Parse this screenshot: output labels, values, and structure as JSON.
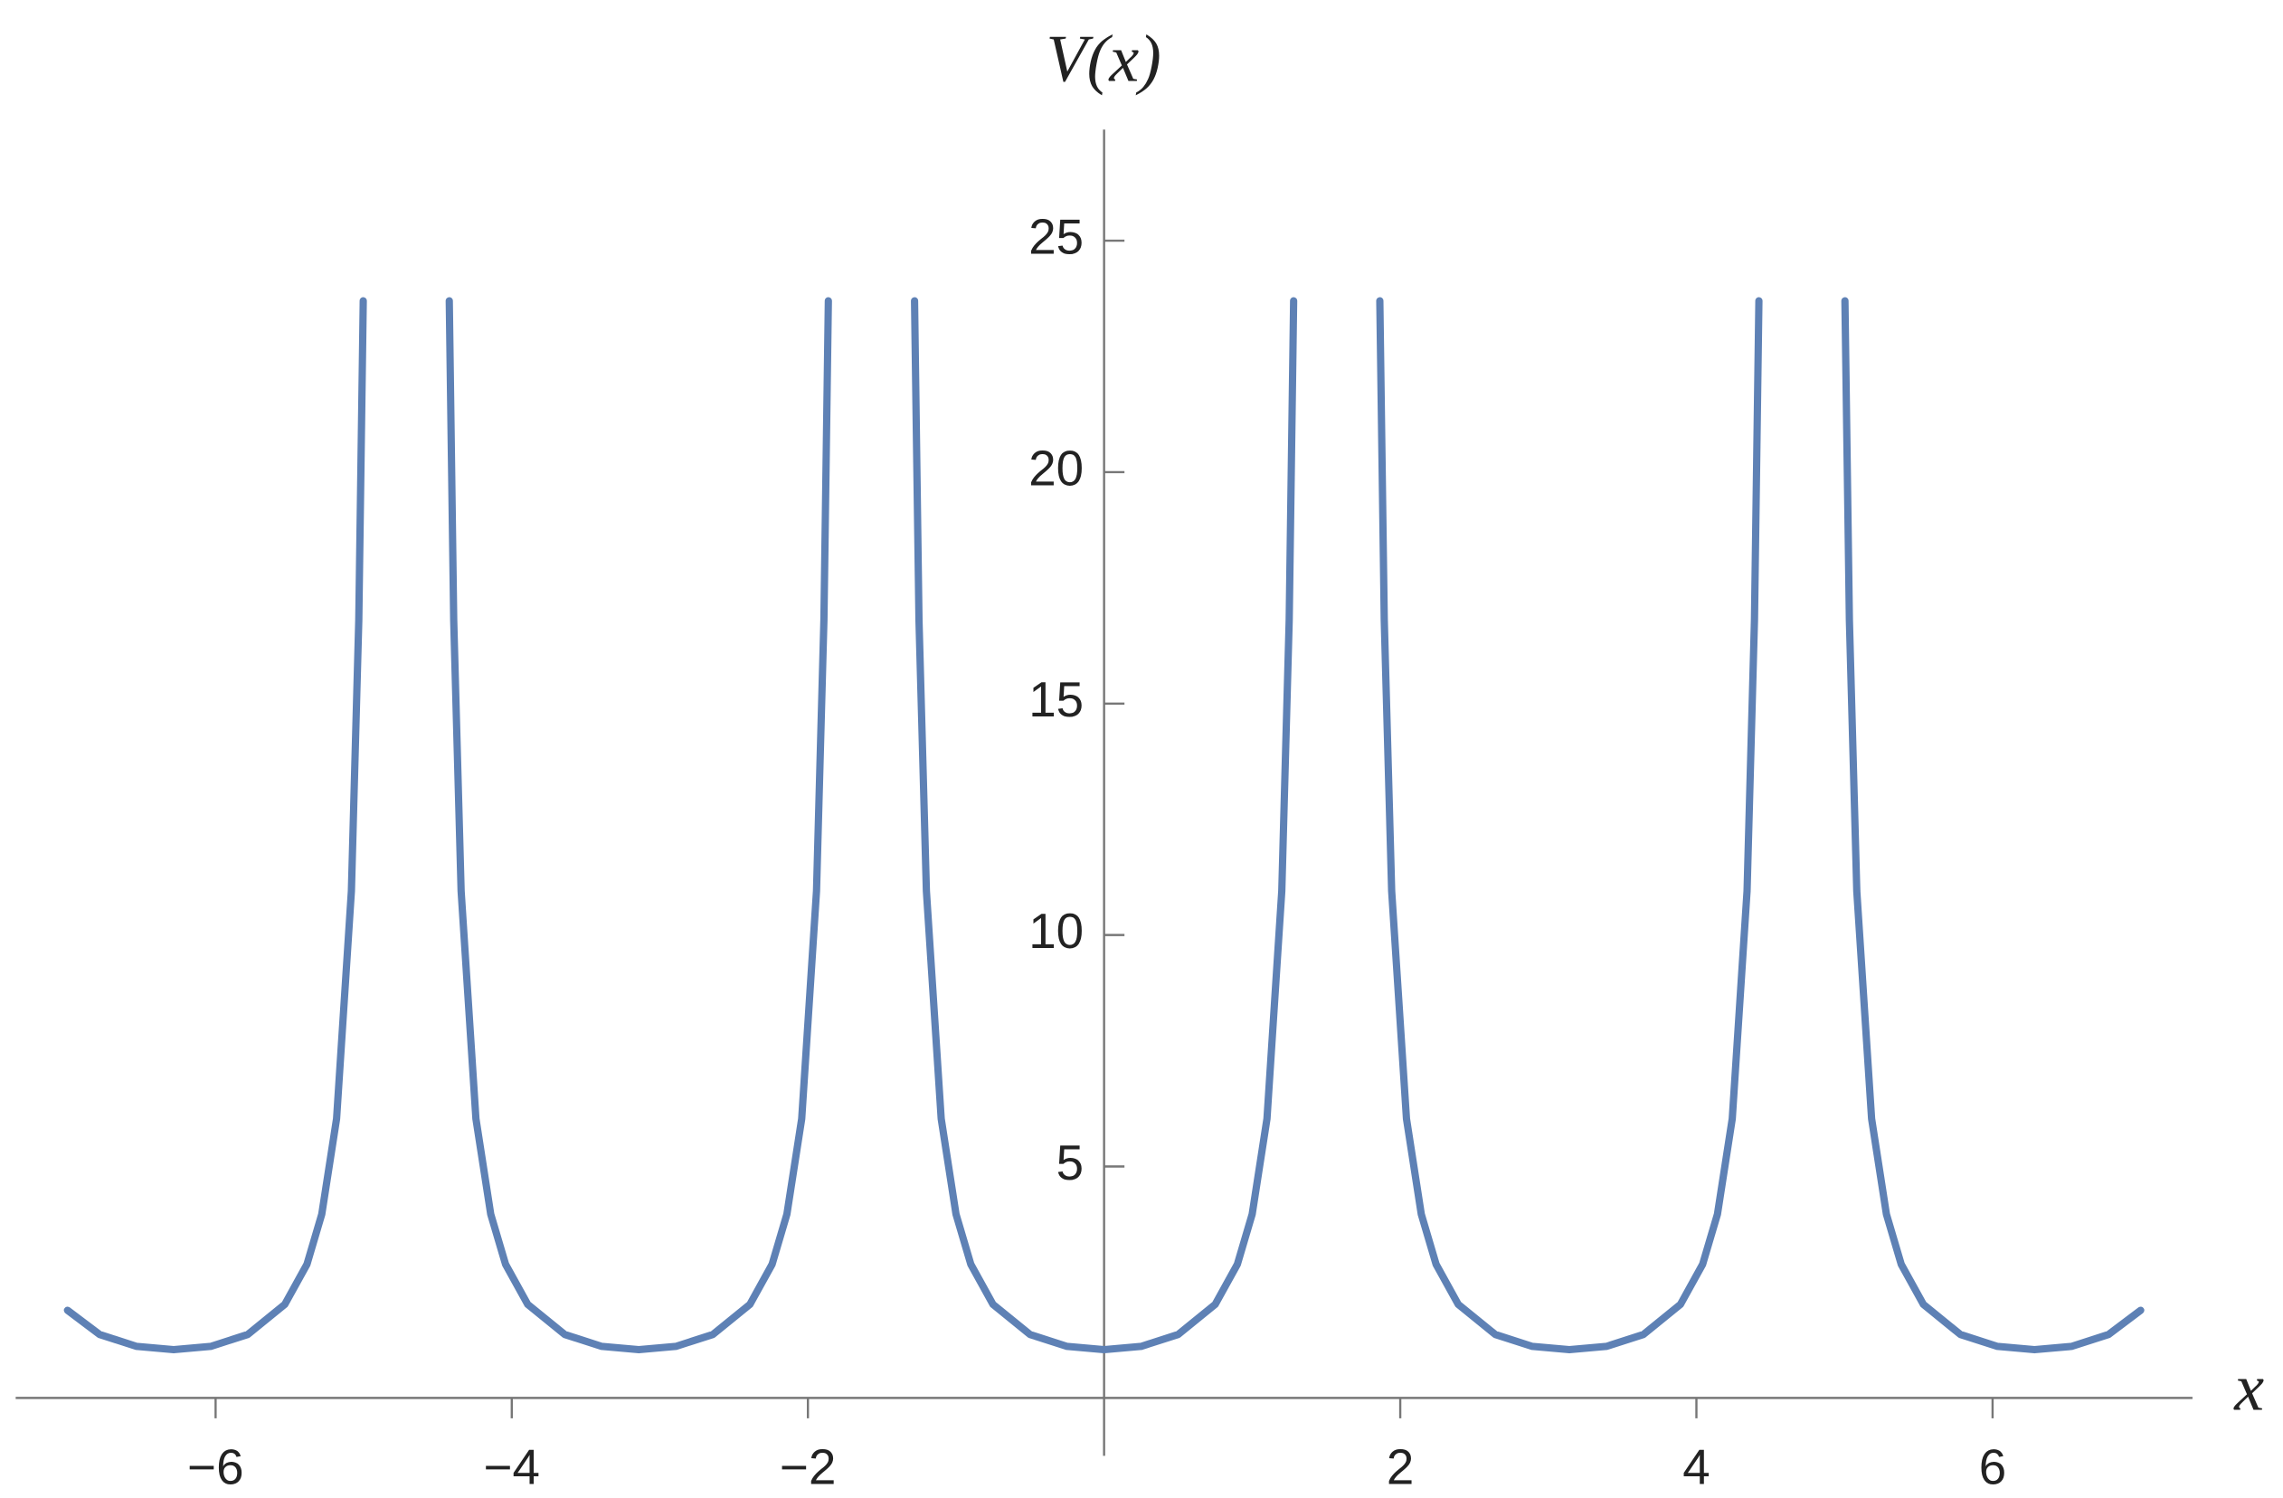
{
  "chart_data": {
    "type": "line",
    "xlabel": "x",
    "ylabel": "V(x)",
    "xlim": [
      -7.35,
      7.35
    ],
    "ylim": [
      -1.25,
      27.4
    ],
    "xticks": [
      {
        "value": -6,
        "label": "−6"
      },
      {
        "value": -4,
        "label": "−4"
      },
      {
        "value": -2,
        "label": "−2"
      },
      2,
      4,
      6
    ],
    "yticks": [
      5,
      10,
      15,
      20,
      25
    ],
    "series": [
      {
        "name": "V(x)",
        "color": "#5e81b5",
        "x": [
          -7,
          -6.783,
          -6.533,
          -6.283,
          -6.033,
          -5.783,
          -5.533,
          -5.383,
          -5.283,
          -5.183,
          -5.083,
          -5.033,
          -5.003,
          null,
          -4.422,
          -4.392,
          -4.342,
          -4.242,
          -4.142,
          -4.042,
          -3.892,
          -3.642,
          -3.392,
          -3.142,
          -2.892,
          -2.642,
          -2.392,
          -2.242,
          -2.142,
          -2.042,
          -1.942,
          -1.892,
          -1.862,
          null,
          -1.28,
          -1.25,
          -1.2,
          -1.1,
          -1,
          -0.9,
          -0.75,
          -0.5,
          -0.25,
          0,
          0.25,
          0.5,
          0.75,
          0.9,
          1,
          1.1,
          1.2,
          1.25,
          1.28,
          null,
          1.862,
          1.892,
          1.942,
          2.042,
          2.142,
          2.242,
          2.392,
          2.642,
          2.892,
          3.142,
          3.392,
          3.642,
          3.892,
          4.042,
          4.142,
          4.242,
          4.342,
          4.392,
          4.422,
          null,
          5.003,
          5.033,
          5.083,
          5.183,
          5.283,
          5.383,
          5.533,
          5.783,
          6.033,
          6.283,
          6.533,
          6.783,
          7
        ],
        "values": [
          1.893,
          1.37,
          1.113,
          1.042,
          1.113,
          1.37,
          2.019,
          2.887,
          3.97,
          6.03,
          10.95,
          16.8,
          23.7,
          null,
          23.7,
          16.8,
          10.95,
          6.03,
          3.97,
          2.887,
          2.019,
          1.37,
          1.113,
          1.042,
          1.113,
          1.37,
          2.019,
          2.887,
          3.97,
          6.03,
          10.95,
          16.8,
          23.7,
          null,
          23.7,
          16.8,
          10.95,
          6.03,
          3.97,
          2.887,
          2.019,
          1.37,
          1.113,
          1.042,
          1.113,
          1.37,
          2.019,
          2.887,
          3.97,
          6.03,
          10.95,
          16.8,
          23.7,
          null,
          23.7,
          16.8,
          10.95,
          6.03,
          3.97,
          2.887,
          2.019,
          1.37,
          1.113,
          1.042,
          1.113,
          1.37,
          2.019,
          2.887,
          3.97,
          6.03,
          10.95,
          16.8,
          23.7,
          null,
          23.7,
          16.8,
          10.95,
          6.03,
          3.97,
          2.887,
          2.019,
          1.37,
          1.113,
          1.042,
          1.113,
          1.37,
          1.893
        ]
      }
    ]
  }
}
